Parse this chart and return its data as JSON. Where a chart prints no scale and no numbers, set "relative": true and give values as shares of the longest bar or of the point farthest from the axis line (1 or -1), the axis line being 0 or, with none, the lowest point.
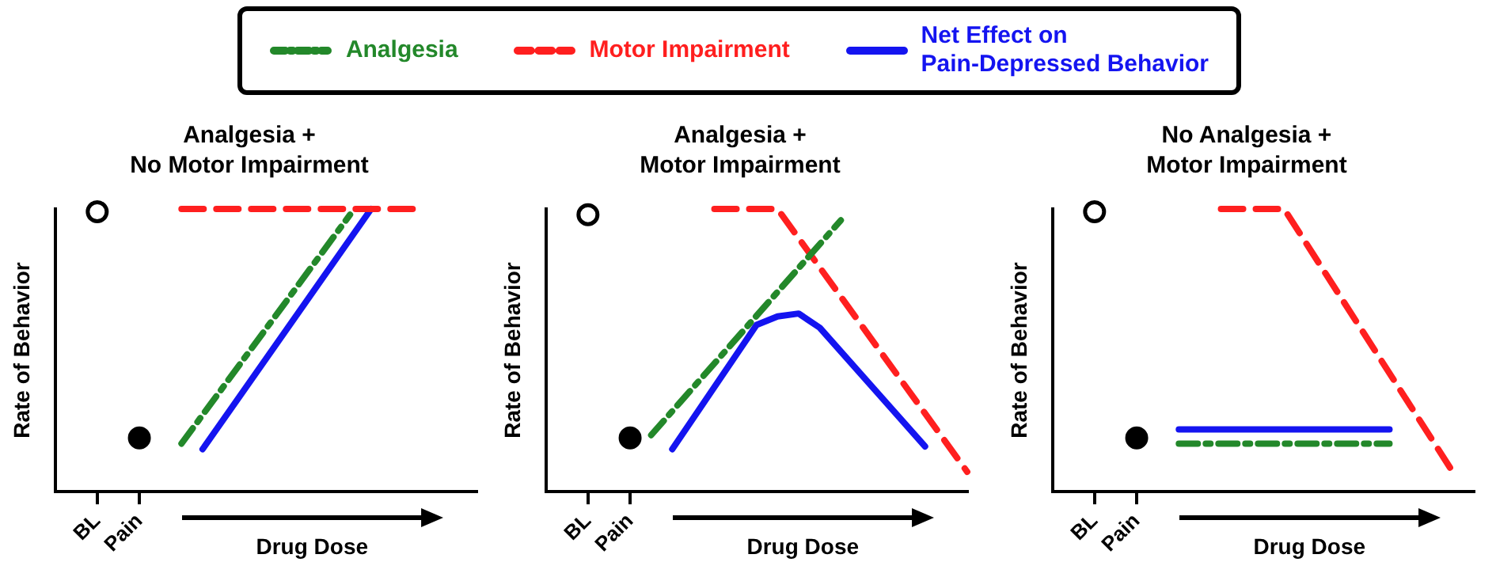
{
  "chart_data": [
    {
      "type": "line",
      "title": "Analgesia +\nNo Motor Impairment",
      "xlabel": "Drug Dose",
      "ylabel": "Rate of Behavior",
      "relative": true,
      "legend": "top",
      "marker": "none",
      "categories": [
        null,
        null,
        "BL",
        null,
        "Pain",
        null,
        null,
        null,
        null,
        null,
        null,
        null,
        null,
        null,
        null,
        null,
        null,
        null,
        null,
        null,
        null
      ],
      "series": [
        {
          "name": "Analgesia",
          "color": "#23882a",
          "line_style": "dashdot",
          "values": [
            null,
            null,
            null,
            null,
            null,
            null,
            0.17,
            null,
            null,
            null,
            null,
            null,
            null,
            null,
            0.98,
            null,
            null,
            null,
            null,
            null,
            null
          ]
        },
        {
          "name": "Motor Impairment",
          "color": "#ff1f1f",
          "line_style": "dashed",
          "values": [
            null,
            null,
            null,
            null,
            null,
            null,
            1,
            null,
            null,
            null,
            null,
            null,
            null,
            null,
            null,
            null,
            null,
            1,
            null,
            null,
            null
          ]
        },
        {
          "name": "Net Effect on\nPain-Depressed Behavior",
          "color": "#1414f0",
          "line_style": "solid",
          "values": [
            null,
            null,
            null,
            null,
            null,
            null,
            null,
            0.15,
            null,
            null,
            null,
            null,
            null,
            null,
            null,
            1,
            null,
            null,
            null,
            null,
            null
          ]
        },
        {
          "type": "scatter",
          "marker": "circle",
          "values": [
            null,
            null,
            0.99,
            null,
            0.19,
            null,
            null,
            null,
            null,
            null,
            null,
            null,
            null,
            null,
            null,
            null,
            null,
            null,
            null,
            null,
            null
          ],
          "colors": [
            null,
            null,
            "#ffffff",
            null,
            "#000000",
            null,
            null,
            null,
            null,
            null,
            null,
            null,
            null,
            null,
            null,
            null,
            null,
            null,
            null,
            null,
            null
          ]
        }
      ]
    },
    {
      "type": "line",
      "title": "Analgesia +\nMotor Impairment",
      "xlabel": "Drug Dose",
      "ylabel": "Rate of Behavior",
      "relative": true,
      "marker": "none",
      "categories": [
        null,
        null,
        "BL",
        null,
        "Pain",
        null,
        null,
        null,
        null,
        null,
        null,
        null,
        null,
        null,
        null,
        null,
        null,
        null,
        null,
        null,
        null
      ],
      "series": [
        {
          "color": "#23882a",
          "line_style": "dashdot",
          "values": [
            null,
            null,
            null,
            null,
            null,
            0.2,
            null,
            null,
            null,
            null,
            null,
            null,
            null,
            null,
            0.96,
            null,
            null,
            null,
            null,
            null,
            null
          ]
        },
        {
          "color": "#ff1f1f",
          "line_style": "dashed",
          "values": [
            null,
            null,
            null,
            null,
            null,
            null,
            null,
            null,
            1,
            null,
            null,
            1,
            null,
            null,
            null,
            null,
            null,
            null,
            null,
            null,
            0.07
          ]
        },
        {
          "color": "#1414f0",
          "line_style": "solid",
          "values": [
            null,
            null,
            null,
            null,
            null,
            null,
            0.15,
            null,
            null,
            null,
            0.59,
            0.62,
            0.63,
            0.58,
            null,
            null,
            null,
            null,
            0.16,
            null,
            null
          ]
        },
        {
          "type": "scatter",
          "marker": "circle",
          "values": [
            null,
            null,
            0.98,
            null,
            0.19,
            null,
            null,
            null,
            null,
            null,
            null,
            null,
            null,
            null,
            null,
            null,
            null,
            null,
            null,
            null,
            null
          ],
          "colors": [
            null,
            null,
            "#ffffff",
            null,
            "#000000",
            null,
            null,
            null,
            null,
            null,
            null,
            null,
            null,
            null,
            null,
            null,
            null,
            null,
            null,
            null,
            null
          ]
        }
      ]
    },
    {
      "type": "line",
      "title": "No Analgesia +\nMotor Impairment",
      "xlabel": "Drug Dose",
      "ylabel": "Rate of Behavior",
      "relative": true,
      "marker": "none",
      "categories": [
        null,
        null,
        "BL",
        null,
        "Pain",
        null,
        null,
        null,
        null,
        null,
        null,
        null,
        null,
        null,
        null,
        null,
        null,
        null,
        null,
        null,
        null
      ],
      "series": [
        {
          "color": "#23882a",
          "line_style": "dashdot",
          "values": [
            null,
            null,
            null,
            null,
            null,
            null,
            0.17,
            null,
            null,
            null,
            null,
            null,
            null,
            null,
            null,
            null,
            0.17,
            null,
            null,
            null,
            null
          ]
        },
        {
          "color": "#ff1f1f",
          "line_style": "dashed",
          "values": [
            null,
            null,
            null,
            null,
            null,
            null,
            null,
            null,
            1,
            null,
            null,
            1,
            null,
            null,
            null,
            null,
            null,
            null,
            null,
            0.07,
            null
          ]
        },
        {
          "color": "#1414f0",
          "line_style": "solid",
          "values": [
            null,
            null,
            null,
            null,
            null,
            null,
            0.22,
            null,
            null,
            null,
            null,
            null,
            null,
            null,
            null,
            null,
            0.22,
            null,
            null,
            null,
            null
          ]
        },
        {
          "type": "scatter",
          "marker": "circle",
          "values": [
            null,
            null,
            0.99,
            null,
            0.19,
            null,
            null,
            null,
            null,
            null,
            null,
            null,
            null,
            null,
            null,
            null,
            null,
            null,
            null,
            null,
            null
          ],
          "colors": [
            null,
            null,
            "#ffffff",
            null,
            "#000000",
            null,
            null,
            null,
            null,
            null,
            null,
            null,
            null,
            null,
            null,
            null,
            null,
            null,
            null,
            null,
            null
          ]
        }
      ]
    }
  ]
}
